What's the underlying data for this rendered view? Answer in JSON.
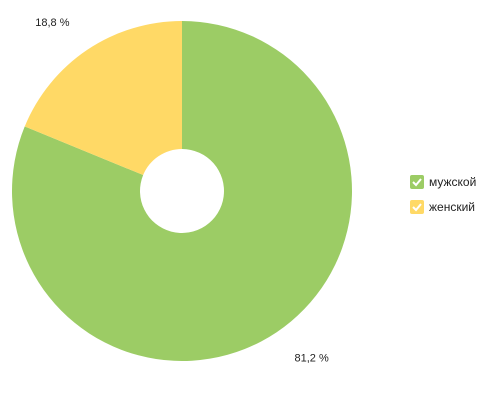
{
  "chart_data": {
    "type": "pie",
    "donut": true,
    "categories": [
      "мужской",
      "женский"
    ],
    "values": [
      81.2,
      18.8
    ],
    "value_labels": [
      "81,2 %",
      "18,8 %"
    ],
    "colors": [
      "#9ccc65",
      "#ffd966"
    ]
  }
}
